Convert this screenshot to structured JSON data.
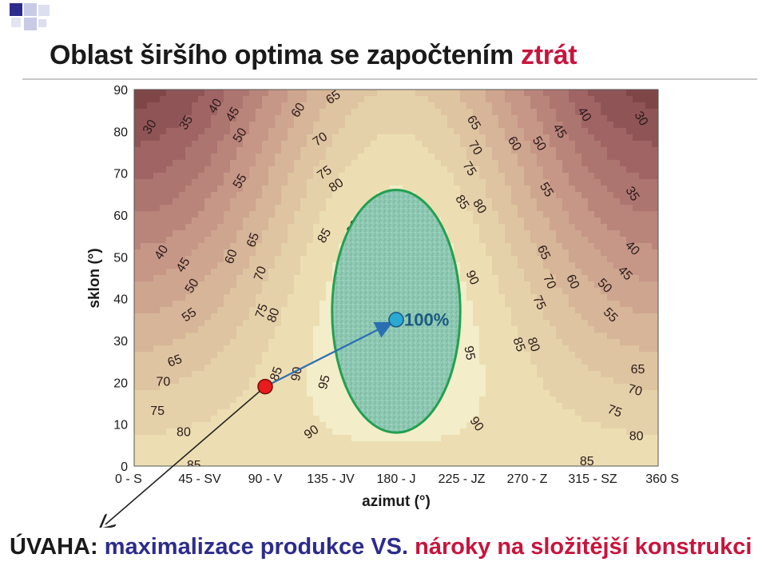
{
  "slide": {
    "title_part1": "Oblast širšího optima",
    "title_part2": "se započtením",
    "title_part3": "ztrát",
    "bottom_part1": "ÚVAHA:",
    "bottom_part2": "maximalizace produkce VS.",
    "bottom_part3": "nároky na složitější konstrukci"
  },
  "chart_data": {
    "type": "contour",
    "xlabel": "azimut (°)",
    "ylabel": "sklon (°)",
    "xlim": [
      0,
      360
    ],
    "ylim": [
      0,
      90
    ],
    "x_ticks": [
      {
        "value": 0,
        "label": "0 - S"
      },
      {
        "value": 45,
        "label": "45 - SV"
      },
      {
        "value": 90,
        "label": "90 - V"
      },
      {
        "value": 135,
        "label": "135 - JV"
      },
      {
        "value": 180,
        "label": "180 - J"
      },
      {
        "value": 225,
        "label": "225 - JZ"
      },
      {
        "value": 270,
        "label": "270 - Z"
      },
      {
        "value": 315,
        "label": "315 - SZ"
      },
      {
        "value": 360,
        "label": "360 S"
      }
    ],
    "y_ticks": [
      0,
      10,
      20,
      30,
      40,
      50,
      60,
      70,
      80,
      90
    ],
    "contour_levels": [
      30,
      35,
      40,
      45,
      50,
      55,
      60,
      65,
      70,
      75,
      80,
      85,
      90,
      95
    ],
    "optimum": {
      "azimuth": 180,
      "tilt": 35,
      "label": "100%"
    },
    "optimum_region": {
      "center_azimuth": 180,
      "center_tilt": 37,
      "azimuth_halfwidth": 44,
      "tilt_halfwidth": 29
    },
    "marked_point": {
      "azimuth": 90,
      "tilt": 19
    },
    "contour_labels": [
      {
        "text": "30",
        "x": 11,
        "y": 81,
        "rot": -58
      },
      {
        "text": "35",
        "x": 36,
        "y": 82,
        "rot": -58
      },
      {
        "text": "40",
        "x": 56,
        "y": 86,
        "rot": -58
      },
      {
        "text": "45",
        "x": 68,
        "y": 84,
        "rot": -58
      },
      {
        "text": "50",
        "x": 73,
        "y": 79,
        "rot": -58
      },
      {
        "text": "55",
        "x": 73,
        "y": 68,
        "rot": -58
      },
      {
        "text": "60",
        "x": 113,
        "y": 85,
        "rot": -58
      },
      {
        "text": "65",
        "x": 137,
        "y": 88,
        "rot": -35
      },
      {
        "text": "70",
        "x": 128,
        "y": 78,
        "rot": -35
      },
      {
        "text": "75",
        "x": 131,
        "y": 70,
        "rot": -35
      },
      {
        "text": "80",
        "x": 139,
        "y": 67,
        "rot": -35
      },
      {
        "text": "85",
        "x": 131,
        "y": 55,
        "rot": -60
      },
      {
        "text": "90",
        "x": 151,
        "y": 57,
        "rot": -60
      },
      {
        "text": "65",
        "x": 233,
        "y": 82,
        "rot": 58
      },
      {
        "text": "70",
        "x": 234,
        "y": 76,
        "rot": 58
      },
      {
        "text": "75",
        "x": 230,
        "y": 71,
        "rot": 58
      },
      {
        "text": "60",
        "x": 261,
        "y": 77,
        "rot": 58
      },
      {
        "text": "50",
        "x": 278,
        "y": 77,
        "rot": 58
      },
      {
        "text": "45",
        "x": 292,
        "y": 80,
        "rot": 58
      },
      {
        "text": "40",
        "x": 309,
        "y": 84,
        "rot": 58
      },
      {
        "text": "30",
        "x": 348,
        "y": 83,
        "rot": 58
      },
      {
        "text": "55",
        "x": 283,
        "y": 66,
        "rot": 58
      },
      {
        "text": "35",
        "x": 342,
        "y": 65,
        "rot": 58
      },
      {
        "text": "85",
        "x": 225,
        "y": 63,
        "rot": 58
      },
      {
        "text": "80",
        "x": 237,
        "y": 62,
        "rot": 58
      },
      {
        "text": "95",
        "x": 168,
        "y": 52,
        "rot": -10
      },
      {
        "text": "40",
        "x": 19,
        "y": 51,
        "rot": -58
      },
      {
        "text": "45",
        "x": 34,
        "y": 48,
        "rot": -58
      },
      {
        "text": "50",
        "x": 40,
        "y": 43,
        "rot": -58
      },
      {
        "text": "55",
        "x": 38,
        "y": 36,
        "rot": -35
      },
      {
        "text": "60",
        "x": 67,
        "y": 50,
        "rot": -70
      },
      {
        "text": "65",
        "x": 82,
        "y": 54,
        "rot": -70
      },
      {
        "text": "70",
        "x": 87,
        "y": 46,
        "rot": -70
      },
      {
        "text": "75",
        "x": 88,
        "y": 37,
        "rot": -70
      },
      {
        "text": "80",
        "x": 96,
        "y": 36,
        "rot": -70
      },
      {
        "text": "90",
        "x": 232,
        "y": 45,
        "rot": 65
      },
      {
        "text": "65",
        "x": 281,
        "y": 51,
        "rot": 65
      },
      {
        "text": "70",
        "x": 285,
        "y": 44,
        "rot": 65
      },
      {
        "text": "75",
        "x": 278,
        "y": 39,
        "rot": 65
      },
      {
        "text": "60",
        "x": 301,
        "y": 44,
        "rot": 65
      },
      {
        "text": "50",
        "x": 323,
        "y": 43,
        "rot": 45
      },
      {
        "text": "45",
        "x": 337,
        "y": 46,
        "rot": 45
      },
      {
        "text": "40",
        "x": 342,
        "y": 52,
        "rot": 45
      },
      {
        "text": "55",
        "x": 327,
        "y": 36,
        "rot": 45
      },
      {
        "text": "85",
        "x": 264,
        "y": 29,
        "rot": 70
      },
      {
        "text": "80",
        "x": 274,
        "y": 29,
        "rot": 70
      },
      {
        "text": "95",
        "x": 230,
        "y": 27,
        "rot": 80
      },
      {
        "text": "65",
        "x": 28,
        "y": 25,
        "rot": -20
      },
      {
        "text": "70",
        "x": 20,
        "y": 20,
        "rot": 0
      },
      {
        "text": "75",
        "x": 16,
        "y": 13,
        "rot": 0
      },
      {
        "text": "80",
        "x": 34,
        "y": 8,
        "rot": 0
      },
      {
        "text": "85",
        "x": 41,
        "y": 0,
        "rot": 0
      },
      {
        "text": "85",
        "x": 98,
        "y": 22,
        "rot": -70
      },
      {
        "text": "90",
        "x": 112,
        "y": 22,
        "rot": -80
      },
      {
        "text": "95",
        "x": 131,
        "y": 20,
        "rot": -75
      },
      {
        "text": "90",
        "x": 122,
        "y": 8,
        "rot": -35
      },
      {
        "text": "90",
        "x": 235,
        "y": 10,
        "rot": 55
      },
      {
        "text": "65",
        "x": 346,
        "y": 23,
        "rot": 0
      },
      {
        "text": "70",
        "x": 344,
        "y": 18,
        "rot": 15
      },
      {
        "text": "75",
        "x": 330,
        "y": 13,
        "rot": 20
      },
      {
        "text": "80",
        "x": 345,
        "y": 7,
        "rot": 0
      },
      {
        "text": "85",
        "x": 311,
        "y": 1,
        "rot": 0
      }
    ]
  }
}
